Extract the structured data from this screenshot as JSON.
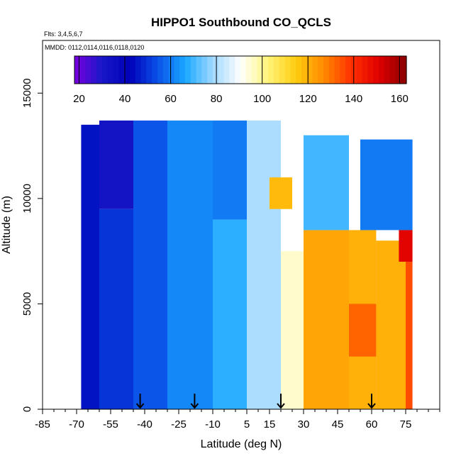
{
  "chart_data": {
    "type": "heatmap",
    "title": "HIPPO1 Southbound CO_QCLS",
    "annotation_flights": "Flts: 3,4,5,6,7",
    "annotation_dates": "MMDD: 0112,0114,0116,0118,0120",
    "xlabel": "Latitude (deg N)",
    "ylabel": "Altitude (m)",
    "xlim": [
      -85,
      90
    ],
    "ylim": [
      0,
      17500
    ],
    "x_ticks": [
      "-85",
      "-70",
      "-55",
      "-40",
      "-25",
      "-10",
      "5",
      "15",
      "30",
      "45",
      "60",
      "75"
    ],
    "x_tick_values": [
      -85,
      -70,
      -55,
      -40,
      -25,
      -10,
      5,
      15,
      30,
      45,
      60,
      75
    ],
    "y_ticks": [
      "0",
      "5000",
      "10000",
      "15000"
    ],
    "y_tick_values": [
      0,
      5000,
      10000,
      15000
    ],
    "colorbar": {
      "min": 18,
      "max": 163,
      "ticks": [
        "20",
        "40",
        "60",
        "80",
        "100",
        "120",
        "140",
        "160"
      ],
      "tick_values": [
        20,
        40,
        60,
        80,
        100,
        120,
        140,
        160
      ],
      "colors": [
        "#7a00e0",
        "#1818c8",
        "#0000b8",
        "#0a50e8",
        "#1aa8ff",
        "#9fd8ff",
        "#ffffff",
        "#fff57a",
        "#ffcc10",
        "#ff8c00",
        "#ff3000",
        "#e00000",
        "#8a0000"
      ]
    },
    "grid": false,
    "arrows_at_latitude": [
      -42,
      -18,
      20,
      60
    ],
    "regions": [
      {
        "lat": [
          -68,
          -60
        ],
        "alt": [
          0,
          13500
        ],
        "co": 45
      },
      {
        "lat": [
          -60,
          -45
        ],
        "alt": [
          0,
          9500
        ],
        "co": 50
      },
      {
        "lat": [
          -60,
          -45
        ],
        "alt": [
          9500,
          13700
        ],
        "co": 32
      },
      {
        "lat": [
          -45,
          -30
        ],
        "alt": [
          0,
          13700
        ],
        "co": 55
      },
      {
        "lat": [
          -30,
          -10
        ],
        "alt": [
          0,
          13700
        ],
        "co": 62
      },
      {
        "lat": [
          -10,
          5
        ],
        "alt": [
          0,
          9000
        ],
        "co": 68
      },
      {
        "lat": [
          -10,
          5
        ],
        "alt": [
          9000,
          13700
        ],
        "co": 60
      },
      {
        "lat": [
          5,
          20
        ],
        "alt": [
          0,
          13700
        ],
        "co": 80
      },
      {
        "lat": [
          15,
          25
        ],
        "alt": [
          9500,
          11000
        ],
        "co": 118
      },
      {
        "lat": [
          20,
          30
        ],
        "alt": [
          0,
          7500
        ],
        "co": 95
      },
      {
        "lat": [
          30,
          50
        ],
        "alt": [
          0,
          8500
        ],
        "co": 122
      },
      {
        "lat": [
          30,
          50
        ],
        "alt": [
          8500,
          13000
        ],
        "co": 70
      },
      {
        "lat": [
          50,
          62
        ],
        "alt": [
          0,
          8500
        ],
        "co": 120
      },
      {
        "lat": [
          50,
          62
        ],
        "alt": [
          2500,
          5000
        ],
        "co": 132
      },
      {
        "lat": [
          55,
          78
        ],
        "alt": [
          8500,
          12800
        ],
        "co": 60
      },
      {
        "lat": [
          62,
          75
        ],
        "alt": [
          0,
          8000
        ],
        "co": 120
      },
      {
        "lat": [
          72,
          78
        ],
        "alt": [
          7000,
          8500
        ],
        "co": 150
      },
      {
        "lat": [
          75,
          78
        ],
        "alt": [
          0,
          7000
        ],
        "co": 135
      }
    ]
  }
}
